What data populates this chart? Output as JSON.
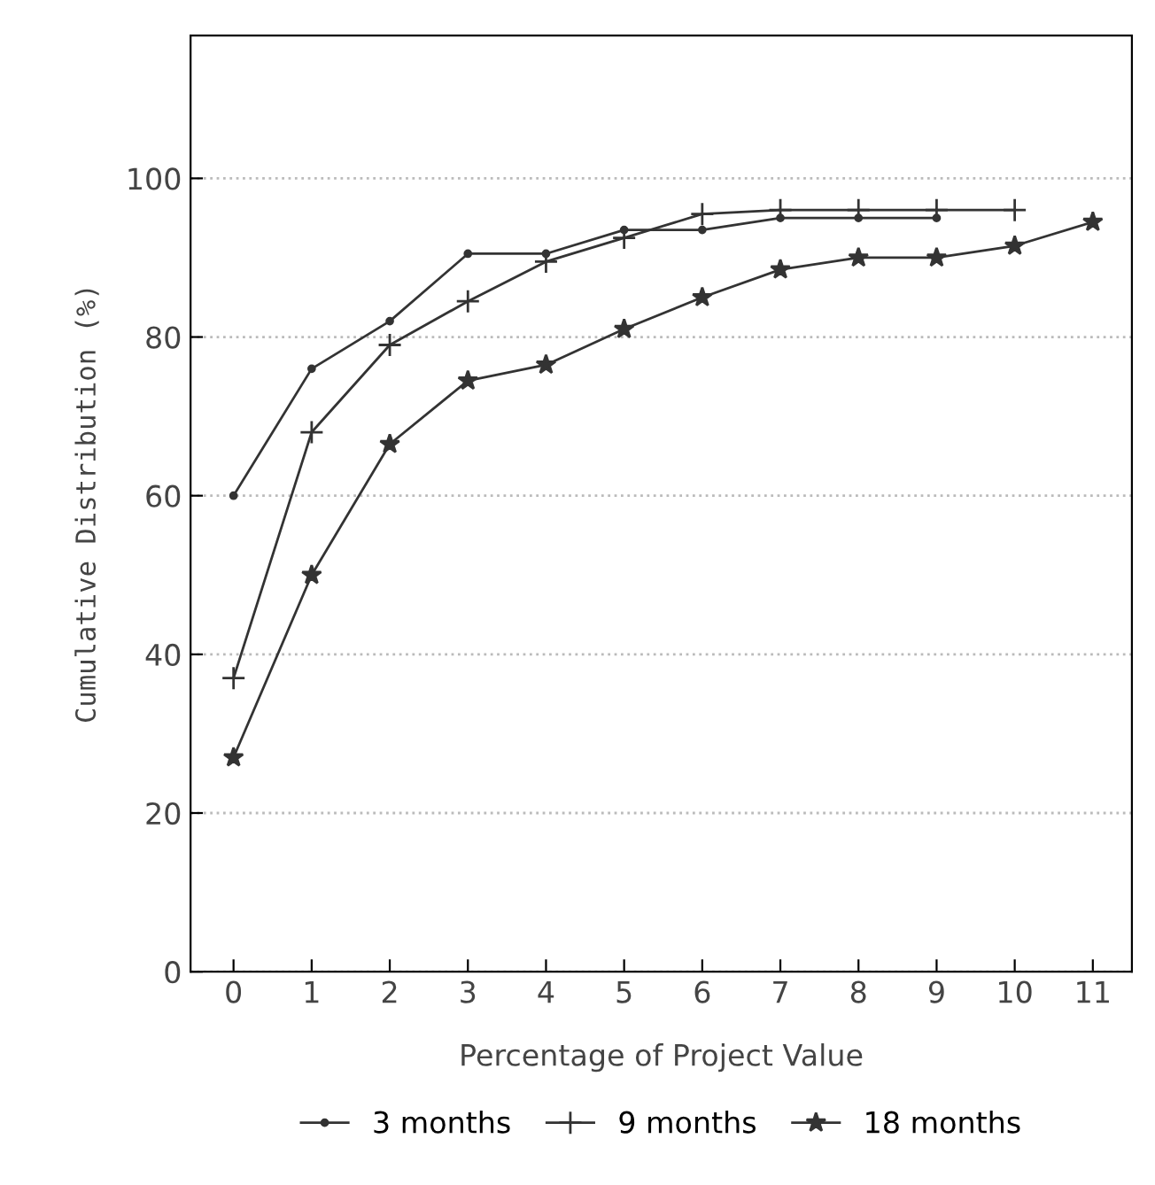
{
  "chart_data": {
    "type": "line",
    "xlabel": "Percentage of Project Value",
    "ylabel": "Cumulative Distribution (%)",
    "x": [
      0,
      1,
      2,
      3,
      4,
      5,
      6,
      7,
      8,
      9,
      10,
      11
    ],
    "xlim": [
      -0.55,
      11.5
    ],
    "xticks": [
      0,
      1,
      2,
      3,
      4,
      5,
      6,
      7,
      8,
      9,
      10,
      11
    ],
    "ylim": [
      0,
      118
    ],
    "yticks": [
      0,
      20,
      40,
      60,
      80,
      100
    ],
    "grid": "y",
    "legend": "bottom",
    "line_style": "solid",
    "series": [
      {
        "name": "3 months",
        "color": "#333333",
        "marker": "circle",
        "values": [
          60,
          76,
          82,
          90.5,
          90.5,
          93.5,
          93.5,
          95,
          95,
          95,
          null,
          null
        ]
      },
      {
        "name": "9 months",
        "color": "#333333",
        "marker": "cross",
        "values": [
          37,
          68,
          79,
          84.5,
          89.5,
          92.5,
          95.5,
          96,
          96,
          96,
          96,
          null
        ]
      },
      {
        "name": "18 months",
        "color": "#333333",
        "marker": "star",
        "values": [
          27,
          50,
          66.5,
          74.5,
          76.5,
          81,
          85,
          88.5,
          90,
          90,
          91.5,
          94.5
        ]
      }
    ]
  }
}
